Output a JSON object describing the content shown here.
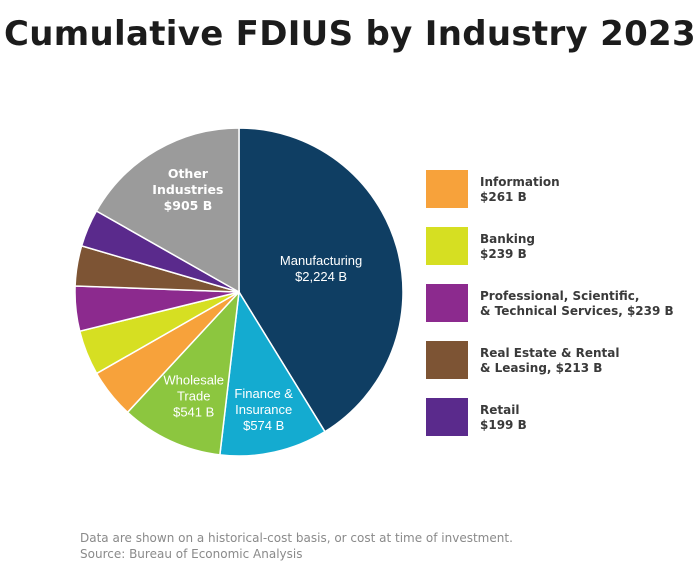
{
  "chart_data": {
    "type": "pie",
    "title": "Cumulative FDIUS by Industry 2023",
    "unit": "B",
    "slices": [
      {
        "name": "Manufacturing",
        "value": 2224,
        "color": "#0f3e63",
        "label_lines": [
          "Manufacturing",
          "$2,224 B"
        ]
      },
      {
        "name": "Finance & Insurance",
        "value": 574,
        "color": "#14abd0",
        "label_lines": [
          "Finance &",
          "Insurance",
          "$574 B"
        ]
      },
      {
        "name": "Wholesale Trade",
        "value": 541,
        "color": "#8cc63f",
        "label_lines": [
          "Wholesale",
          "Trade",
          "$541 B"
        ]
      },
      {
        "name": "Information",
        "value": 261,
        "color": "#f7a23b",
        "label_lines": []
      },
      {
        "name": "Banking",
        "value": 239,
        "color": "#d6df22",
        "label_lines": []
      },
      {
        "name": "Professional, Scientific, & Technical Services",
        "value": 239,
        "color": "#8c2a8e",
        "label_lines": []
      },
      {
        "name": "Real Estate & Rental & Leasing",
        "value": 213,
        "color": "#7d5434",
        "label_lines": []
      },
      {
        "name": "Retail",
        "value": 199,
        "color": "#5a2a8c",
        "label_lines": []
      },
      {
        "name": "Other Industries",
        "value": 905,
        "color": "#9b9b9b",
        "label_lines": [
          "Other",
          "Industries",
          "$905 B"
        ]
      }
    ]
  },
  "legend": [
    {
      "text": "Information\n$261 B",
      "color": "#f7a23b"
    },
    {
      "text": "Banking\n$239 B",
      "color": "#d6df22"
    },
    {
      "text": "Professional, Scientific,\n& Technical Services, $239 B",
      "color": "#8c2a8e"
    },
    {
      "text": "Real Estate & Rental\n& Leasing, $213 B",
      "color": "#7d5434"
    },
    {
      "text": "Retail\n$199 B",
      "color": "#5a2a8c"
    }
  ],
  "footnote": {
    "line1": "Data are shown on a historical-cost basis, or cost at time of investment.",
    "line2": "Source: Bureau of Economic Analysis"
  }
}
